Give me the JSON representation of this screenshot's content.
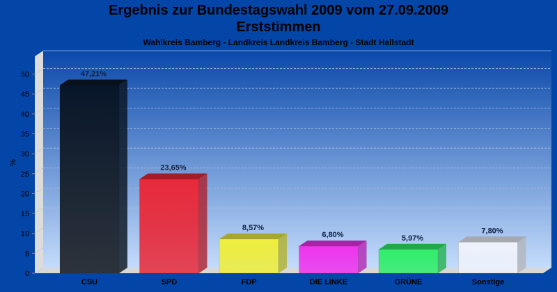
{
  "chart_data": {
    "type": "bar",
    "title": "Ergebnis zur Bundestagswahl 2009 vom 27.09.2009",
    "subtitle": "Erststimmen",
    "subtitle2": "Wahlkreis Bamberg - Landkreis Landkreis Bamberg - Stadt Hallstadt",
    "xlabel": "",
    "ylabel": "%",
    "ylim": [
      0,
      55
    ],
    "yticks": [
      0,
      5,
      10,
      15,
      20,
      25,
      30,
      35,
      40,
      45,
      50
    ],
    "grid": true,
    "categories": [
      "CSU",
      "SPD",
      "FDP",
      "DIE LINKE",
      "GRÜNE",
      "Sonstige"
    ],
    "values": [
      47.21,
      23.65,
      8.57,
      6.8,
      5.97,
      7.8
    ],
    "labels": [
      "47,21%",
      "23,65%",
      "8,57%",
      "6,80%",
      "5,97%",
      "7,80%"
    ],
    "colors": [
      "#0c1828",
      "#e82a3a",
      "#eeee3c",
      "#ee34ee",
      "#30ee6a",
      "#eef2fb"
    ]
  }
}
